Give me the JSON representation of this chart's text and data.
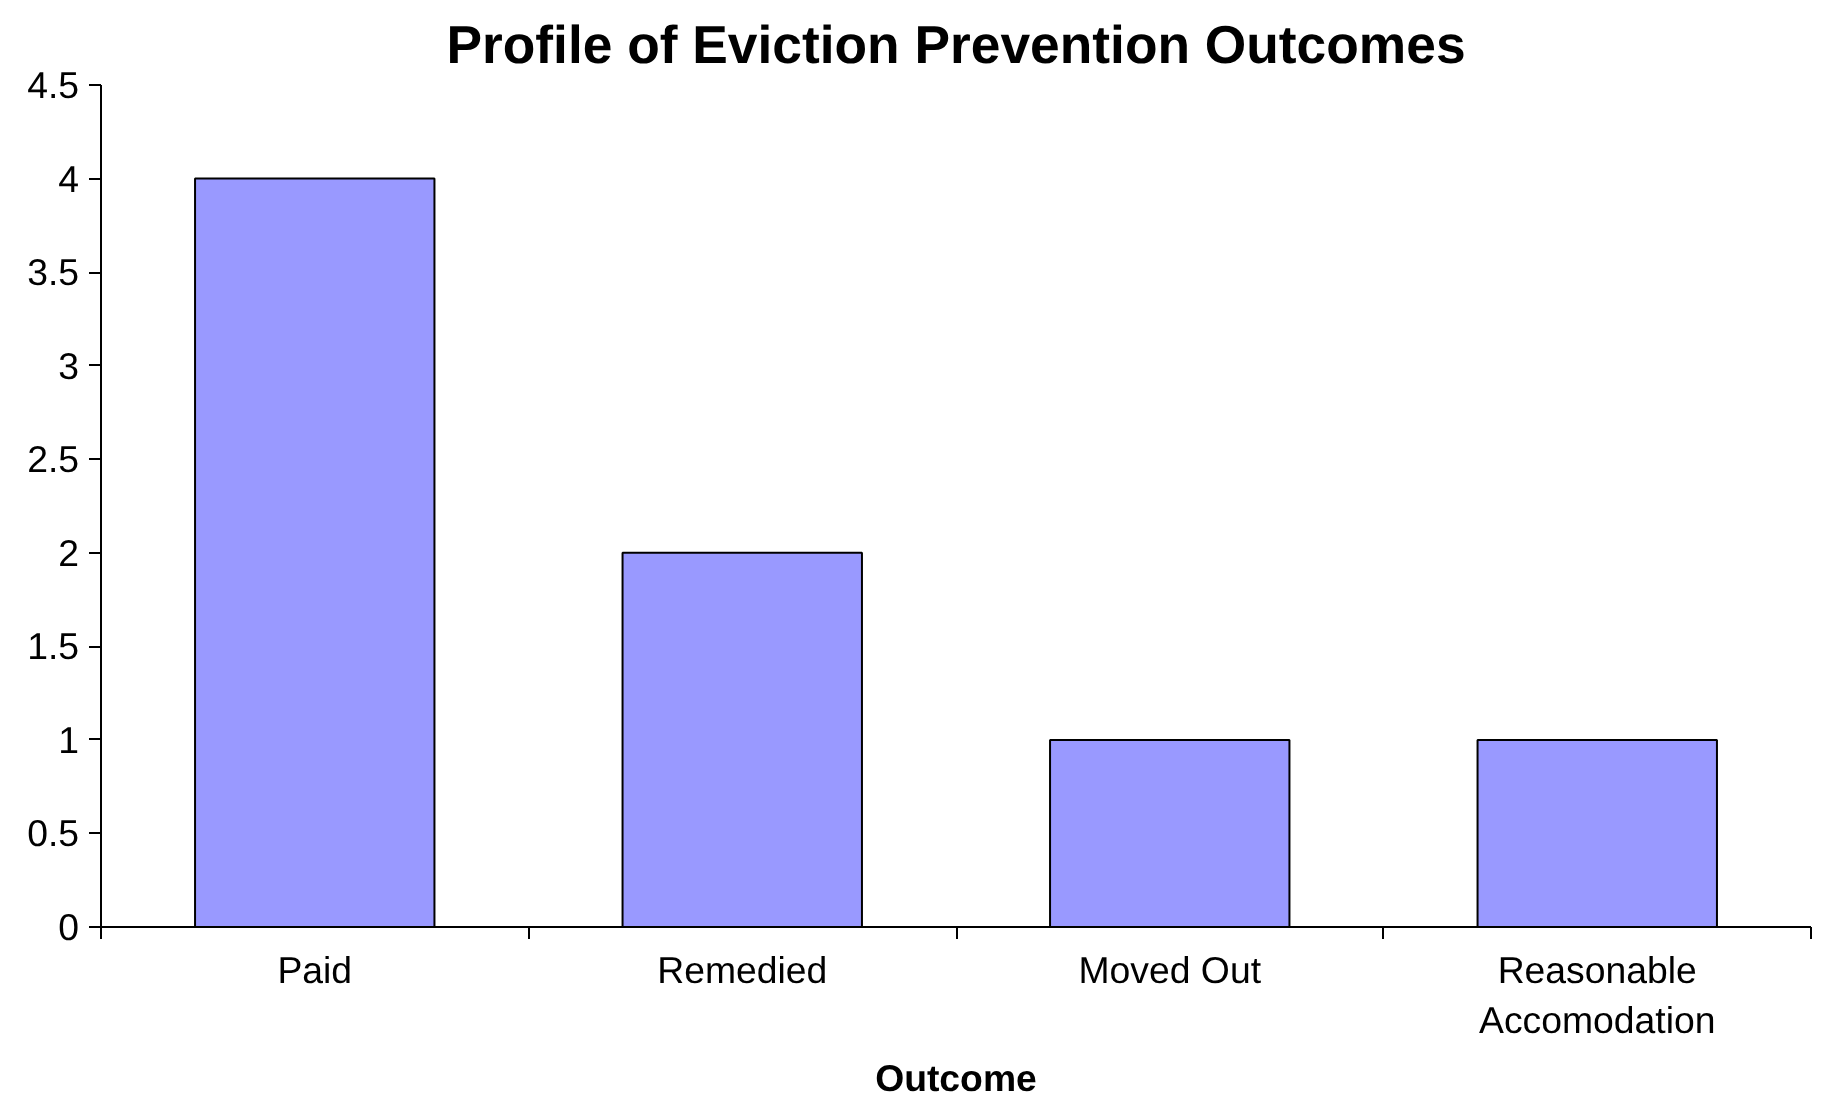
{
  "chart_data": {
    "type": "bar",
    "title": "Profile of Eviction Prevention Outcomes",
    "xlabel": "Outcome",
    "categories": [
      "Paid",
      "Remedied",
      "Moved Out",
      "Reasonable Accomodation"
    ],
    "values": [
      4,
      2,
      1,
      1
    ],
    "color": "#9999ff",
    "ylim": [
      0,
      4.5
    ],
    "yticks": [
      0,
      0.5,
      1,
      1.5,
      2,
      2.5,
      3,
      3.5,
      4,
      4.5
    ],
    "grid": false
  }
}
